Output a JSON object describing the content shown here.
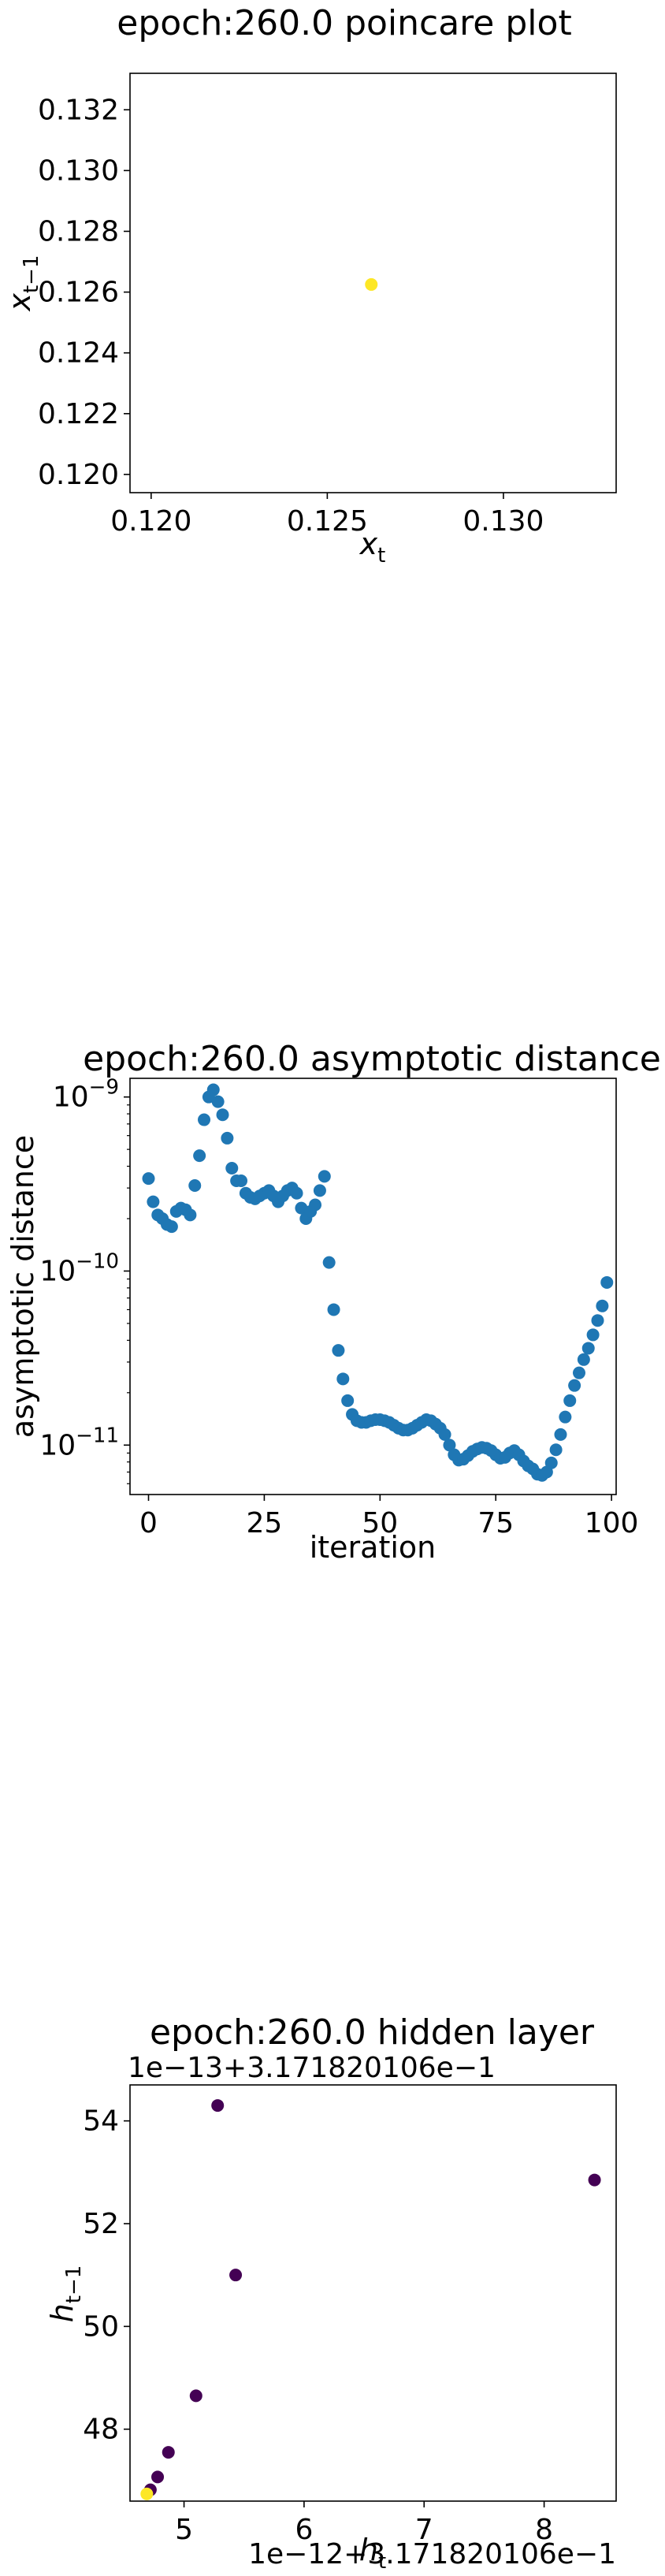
{
  "chart_data": [
    {
      "type": "scatter",
      "title": "epoch:260.0 poincare plot",
      "xlabel": "x_t",
      "ylabel": "x_{t−1}",
      "xlim": [
        0.1194,
        0.1332
      ],
      "ylim": [
        0.1194,
        0.1332
      ],
      "x_ticks": [
        {
          "value": 0.12,
          "label": "0.120"
        },
        {
          "value": 0.125,
          "label": "0.125"
        },
        {
          "value": 0.13,
          "label": "0.130"
        }
      ],
      "y_ticks": [
        {
          "value": 0.12,
          "label": "0.120"
        },
        {
          "value": 0.122,
          "label": "0.122"
        },
        {
          "value": 0.124,
          "label": "0.124"
        },
        {
          "value": 0.126,
          "label": "0.126"
        },
        {
          "value": 0.128,
          "label": "0.128"
        },
        {
          "value": 0.13,
          "label": "0.130"
        },
        {
          "value": 0.132,
          "label": "0.132"
        }
      ],
      "points": [
        {
          "x": 0.12625,
          "y": 0.12625
        }
      ],
      "point_color": "#fde725",
      "grid": false
    },
    {
      "type": "scatter",
      "title": "epoch:260.0 asymptotic distance",
      "xlabel": "iteration",
      "ylabel": "asymptotic distance",
      "y_scale": "log",
      "xlim": [
        -4,
        101
      ],
      "ylim": [
        5.2e-12,
        1.28e-09
      ],
      "x_ticks": [
        {
          "value": 0,
          "label": "0"
        },
        {
          "value": 25,
          "label": "25"
        },
        {
          "value": 50,
          "label": "50"
        },
        {
          "value": 75,
          "label": "75"
        },
        {
          "value": 100,
          "label": "100"
        }
      ],
      "y_ticks": [
        {
          "value": 1e-11,
          "base": "10",
          "exp": "−11"
        },
        {
          "value": 1e-10,
          "base": "10",
          "exp": "−10"
        },
        {
          "value": 1e-09,
          "base": "10",
          "exp": "−9"
        }
      ],
      "x": [
        0,
        1,
        2,
        3,
        4,
        5,
        6,
        7,
        8,
        9,
        10,
        11,
        12,
        13,
        14,
        15,
        16,
        17,
        18,
        19,
        20,
        21,
        22,
        23,
        24,
        25,
        26,
        27,
        28,
        29,
        30,
        31,
        32,
        33,
        34,
        35,
        36,
        37,
        38,
        39,
        40,
        41,
        42,
        43,
        44,
        45,
        46,
        47,
        48,
        49,
        50,
        51,
        52,
        53,
        54,
        55,
        56,
        57,
        58,
        59,
        60,
        61,
        62,
        63,
        64,
        65,
        66,
        67,
        68,
        69,
        70,
        71,
        72,
        73,
        74,
        75,
        76,
        77,
        78,
        79,
        80,
        81,
        82,
        83,
        84,
        85,
        86,
        87,
        88,
        89,
        90,
        91,
        92,
        93,
        94,
        95,
        96,
        97,
        98,
        99
      ],
      "y": [
        3.4e-10,
        2.5e-10,
        2.1e-10,
        2e-10,
        1.85e-10,
        1.8e-10,
        2.2e-10,
        2.3e-10,
        2.25e-10,
        2.1e-10,
        3.1e-10,
        4.6e-10,
        7.4e-10,
        1e-09,
        1.1e-09,
        9.4e-10,
        7.9e-10,
        5.8e-10,
        3.9e-10,
        3.3e-10,
        3.3e-10,
        2.8e-10,
        2.65e-10,
        2.6e-10,
        2.7e-10,
        2.8e-10,
        2.9e-10,
        2.7e-10,
        2.5e-10,
        2.7e-10,
        2.9e-10,
        3e-10,
        2.8e-10,
        2.3e-10,
        2e-10,
        2.2e-10,
        2.4e-10,
        2.9e-10,
        3.5e-10,
        1.12e-10,
        6e-11,
        3.5e-11,
        2.4e-11,
        1.8e-11,
        1.5e-11,
        1.38e-11,
        1.35e-11,
        1.35e-11,
        1.38e-11,
        1.4e-11,
        1.4e-11,
        1.38e-11,
        1.35e-11,
        1.3e-11,
        1.25e-11,
        1.22e-11,
        1.22e-11,
        1.25e-11,
        1.3e-11,
        1.35e-11,
        1.4e-11,
        1.38e-11,
        1.32e-11,
        1.25e-11,
        1.15e-11,
        1e-11,
        8.8e-12,
        8.2e-12,
        8.3e-12,
        8.7e-12,
        9.2e-12,
        9.5e-12,
        9.7e-12,
        9.6e-12,
        9.3e-12,
        8.8e-12,
        8.4e-12,
        8.5e-12,
        9e-12,
        9.3e-12,
        8.8e-12,
        8.1e-12,
        7.6e-12,
        7.3e-12,
        6.8e-12,
        6.7e-12,
        7e-12,
        7.9e-12,
        9.4e-12,
        1.15e-11,
        1.45e-11,
        1.8e-11,
        2.2e-11,
        2.6e-11,
        3.1e-11,
        3.6e-11,
        4.3e-11,
        5.2e-11,
        6.3e-11,
        8.6e-11
      ],
      "point_color": "#1f77b4",
      "grid": false
    },
    {
      "type": "scatter",
      "title": "epoch:260.0 hidden layer",
      "xlabel": "h_t",
      "ylabel": "h_{t−1}",
      "xlim": [
        4.55,
        8.6
      ],
      "ylim": [
        46.6,
        54.7
      ],
      "x_ticks": [
        {
          "value": 5,
          "label": "5"
        },
        {
          "value": 6,
          "label": "6"
        },
        {
          "value": 7,
          "label": "7"
        },
        {
          "value": 8,
          "label": "8"
        }
      ],
      "y_ticks": [
        {
          "value": 48,
          "label": "48"
        },
        {
          "value": 50,
          "label": "50"
        },
        {
          "value": 52,
          "label": "52"
        },
        {
          "value": 54,
          "label": "54"
        }
      ],
      "x_offset_text": "1e−12+3.171820106e−1",
      "y_offset_text": "1e−13+3.171820106e−1",
      "points": [
        {
          "x": 5.28,
          "y": 54.3,
          "color": "#440154"
        },
        {
          "x": 8.42,
          "y": 52.85,
          "color": "#440154"
        },
        {
          "x": 5.43,
          "y": 51.0,
          "color": "#440154"
        },
        {
          "x": 5.1,
          "y": 48.65,
          "color": "#440154"
        },
        {
          "x": 4.87,
          "y": 47.55,
          "color": "#440154"
        },
        {
          "x": 4.78,
          "y": 47.07,
          "color": "#440154"
        },
        {
          "x": 4.72,
          "y": 46.82,
          "color": "#440154"
        },
        {
          "x": 4.69,
          "y": 46.74,
          "color": "#fde725"
        }
      ],
      "grid": false
    }
  ]
}
